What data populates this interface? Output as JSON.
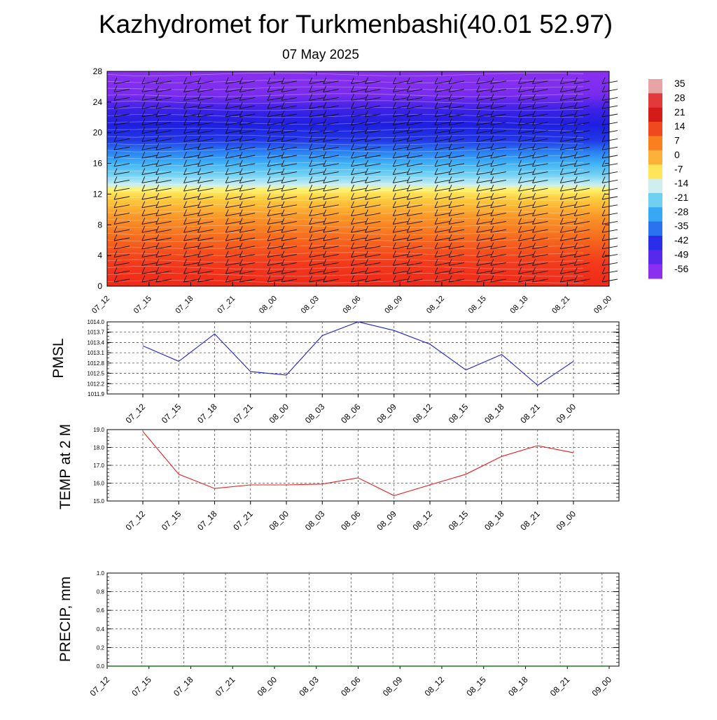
{
  "header": {
    "title": "Kazhydromet for Turkmenbashi(40.01 52.97)",
    "subtitle": "07 May 2025"
  },
  "chart_data": [
    {
      "type": "heatmap",
      "x_ticks": [
        "07_12",
        "07_15",
        "07_18",
        "07_21",
        "08_00",
        "08_03",
        "08_06",
        "08_09",
        "08_12",
        "08_15",
        "08_18",
        "08_21",
        "09_00"
      ],
      "y_ticks": [
        "0",
        "4",
        "8",
        "12",
        "16",
        "20",
        "24",
        "28"
      ],
      "ylim": [
        0,
        28
      ],
      "colorbar_labels": [
        "35",
        "28",
        "21",
        "14",
        "7",
        "0",
        "-7",
        "-14",
        "-21",
        "-28",
        "-35",
        "-42",
        "-49",
        "-56"
      ],
      "colorbar_range": [
        -60,
        37
      ],
      "colorbar_colors": [
        "#e8a4a4",
        "#e23a3a",
        "#d51a1a",
        "#ef4a1e",
        "#f8801e",
        "#fbb13a",
        "#fde55a",
        "#cfeef0",
        "#6fd0f0",
        "#38a8f5",
        "#2a72f0",
        "#2a2ee8",
        "#5828ec",
        "#8a2ef0"
      ],
      "profile_stops": [
        {
          "h": 0,
          "color": "#f02818"
        },
        {
          "h": 3,
          "color": "#f23a1c"
        },
        {
          "h": 6,
          "color": "#f6661e"
        },
        {
          "h": 9,
          "color": "#fa9628"
        },
        {
          "h": 11.5,
          "color": "#fdd040"
        },
        {
          "h": 12.6,
          "color": "#fff26a"
        },
        {
          "h": 13.2,
          "color": "#c8eef2"
        },
        {
          "h": 14.5,
          "color": "#74d2f2"
        },
        {
          "h": 16,
          "color": "#3fb2f5"
        },
        {
          "h": 17.5,
          "color": "#2a80f2"
        },
        {
          "h": 19,
          "color": "#2238e6"
        },
        {
          "h": 21,
          "color": "#1f1fe0"
        },
        {
          "h": 23,
          "color": "#3a22e6"
        },
        {
          "h": 25,
          "color": "#7a2cee"
        },
        {
          "h": 28,
          "color": "#8a30f0"
        }
      ]
    },
    {
      "type": "line",
      "ylabel": "PMSL",
      "categories": [
        "07_12",
        "07_15",
        "07_18",
        "07_21",
        "08_00",
        "08_03",
        "08_06",
        "08_09",
        "08_12",
        "08_15",
        "08_18",
        "08_21",
        "09_00"
      ],
      "values": [
        1013.3,
        1012.85,
        1013.65,
        1012.55,
        1012.45,
        1013.6,
        1014.0,
        1013.75,
        1013.35,
        1012.6,
        1013.05,
        1012.15,
        1012.85
      ],
      "ylim": [
        1011.9,
        1014.0
      ],
      "y_ticks": [
        "1011.9",
        "1012.2",
        "1012.5",
        "1012.8",
        "1013.1",
        "1013.4",
        "1013.7",
        "1014.0"
      ],
      "color": "#1f1fd6",
      "grid": true
    },
    {
      "type": "line",
      "ylabel": "TEMP at 2 M",
      "categories": [
        "07_12",
        "07_15",
        "07_18",
        "07_21",
        "08_00",
        "08_03",
        "08_06",
        "08_09",
        "08_12",
        "08_15",
        "08_18",
        "08_21",
        "09_00"
      ],
      "values": [
        18.9,
        16.5,
        15.7,
        15.9,
        15.9,
        15.95,
        16.3,
        15.3,
        15.9,
        16.5,
        17.5,
        18.1,
        17.7
      ],
      "ylim": [
        15.0,
        19.0
      ],
      "y_ticks": [
        "15.0",
        "16.0",
        "17.0",
        "18.0",
        "19.0"
      ],
      "color": "#e61e1e",
      "grid": true
    },
    {
      "type": "line",
      "ylabel": "PRECIP, mm",
      "categories": [
        "07_12",
        "07_15",
        "07_18",
        "07_21",
        "08_00",
        "08_03",
        "08_06",
        "08_09",
        "08_12",
        "08_15",
        "08_18",
        "08_21",
        "09_00"
      ],
      "values": [
        0,
        0,
        0,
        0,
        0,
        0,
        0,
        0,
        0,
        0,
        0,
        0,
        0
      ],
      "ylim": [
        0.0,
        1.0
      ],
      "y_ticks": [
        "0.0",
        "0.2",
        "0.4",
        "0.6",
        "0.8",
        "1.0"
      ],
      "color": "#1a7a1a",
      "grid": true
    }
  ]
}
